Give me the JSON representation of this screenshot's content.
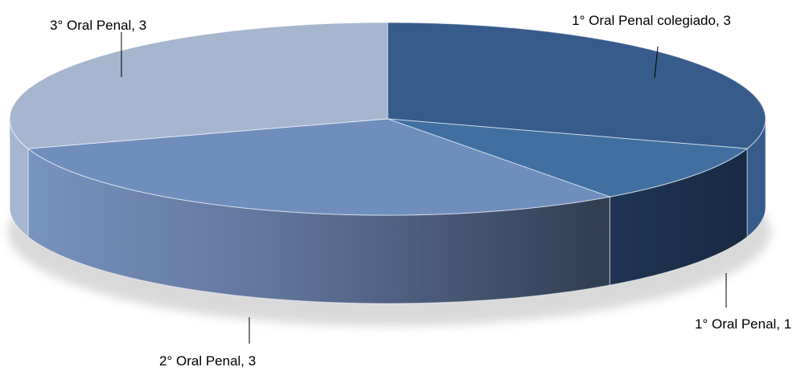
{
  "chart_data": {
    "type": "pie",
    "style": "3d",
    "title": "",
    "categories": [
      "1° Oral Penal colegiado",
      "1° Oral Penal",
      "2° Oral Penal",
      "3° Oral Penal"
    ],
    "values": [
      3,
      1,
      3,
      3
    ],
    "data_labels": [
      "1° Oral Penal colegiado, 3",
      "1° Oral Penal, 1",
      "2° Oral Penal, 3",
      "3° Oral Penal, 3"
    ],
    "colors": [
      "#375c8b",
      "#416fa1",
      "#6f8ebc",
      "#a6b6cf"
    ],
    "legend": "none"
  }
}
